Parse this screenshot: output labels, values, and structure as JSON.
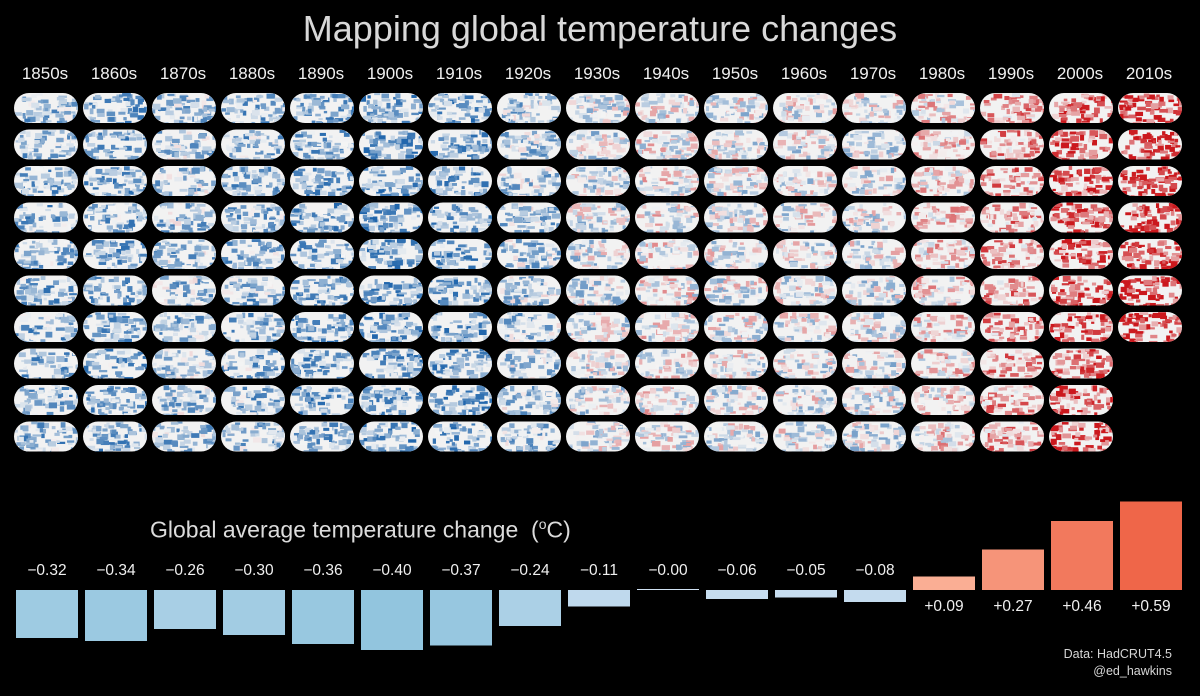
{
  "title": "Mapping global temperature changes",
  "bar_title": "Global average temperature change",
  "bar_unit_open": "(",
  "bar_unit_sup": "o",
  "bar_unit_close": "C)",
  "credit_line1": "Data: HadCRUT4.5",
  "credit_line2": "@ed_hawkins",
  "colors": {
    "background": "#000000",
    "warm": "#f4a582",
    "warm_strong": "#ef8a62",
    "cool": "#92c5de",
    "cool_light": "#c6dbef",
    "map_base": "#f2f2f2"
  },
  "chart_data": {
    "type": "bar",
    "title": "Global average temperature change",
    "ylabel": "oC",
    "categories": [
      "1850s",
      "1860s",
      "1870s",
      "1880s",
      "1890s",
      "1900s",
      "1910s",
      "1920s",
      "1930s",
      "1940s",
      "1950s",
      "1960s",
      "1970s",
      "1980s",
      "1990s",
      "2000s",
      "2010s"
    ],
    "values": [
      -0.32,
      -0.34,
      -0.26,
      -0.3,
      -0.36,
      -0.4,
      -0.37,
      -0.24,
      -0.11,
      -0.0,
      -0.06,
      -0.05,
      -0.08,
      0.09,
      0.27,
      0.46,
      0.59
    ],
    "value_labels": [
      "−0.32",
      "−0.34",
      "−0.26",
      "−0.30",
      "−0.36",
      "−0.40",
      "−0.37",
      "−0.24",
      "−0.11",
      "−0.00",
      "−0.06",
      "−0.05",
      "−0.08",
      "+0.09",
      "+0.27",
      "+0.46",
      "+0.59"
    ],
    "maps_per_decade": [
      10,
      10,
      10,
      10,
      10,
      10,
      10,
      10,
      10,
      10,
      10,
      10,
      10,
      10,
      10,
      10,
      7
    ]
  }
}
